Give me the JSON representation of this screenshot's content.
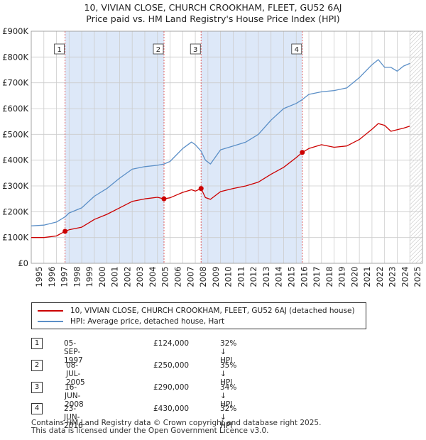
{
  "title_line1": "10, VIVIAN CLOSE, CHURCH CROOKHAM, FLEET, GU52 6AJ",
  "title_line2": "Price paid vs. HM Land Registry's House Price Index (HPI)",
  "colors": {
    "price_paid": "#cc0000",
    "hpi": "#5b8fc7",
    "shade": "#dde8f8",
    "vline": "#e06060",
    "grid": "#cccccc"
  },
  "chart_data": {
    "type": "line",
    "x_range": [
      1995,
      2026
    ],
    "ylim": [
      0,
      900000
    ],
    "y_ticks": [
      {
        "value": 0,
        "label": "£0"
      },
      {
        "value": 100000,
        "label": "£100K"
      },
      {
        "value": 200000,
        "label": "£200K"
      },
      {
        "value": 300000,
        "label": "£300K"
      },
      {
        "value": 400000,
        "label": "£400K"
      },
      {
        "value": 500000,
        "label": "£500K"
      },
      {
        "value": 600000,
        "label": "£600K"
      },
      {
        "value": 700000,
        "label": "£700K"
      },
      {
        "value": 800000,
        "label": "£800K"
      },
      {
        "value": 900000,
        "label": "£900K"
      }
    ],
    "x_ticks": [
      "1995",
      "1996",
      "1997",
      "1998",
      "1999",
      "2000",
      "2001",
      "2002",
      "2003",
      "2004",
      "2005",
      "2006",
      "2007",
      "2008",
      "2009",
      "2010",
      "2011",
      "2012",
      "2013",
      "2014",
      "2015",
      "2016",
      "2017",
      "2018",
      "2019",
      "2020",
      "2021",
      "2022",
      "2023",
      "2024",
      "2025",
      "2026"
    ],
    "shaded_periods": [
      [
        1997.68,
        2005.52
      ],
      [
        2008.46,
        2016.48
      ]
    ],
    "forecast_start": 2025.0,
    "series": [
      {
        "name": "10, VIVIAN CLOSE, CHURCH CROOKHAM, FLEET, GU52 6AJ (detached house)",
        "x": [
          1995.0,
          1996.0,
          1997.0,
          1997.68,
          1998.0,
          1999.0,
          2000.0,
          2001.0,
          2002.0,
          2003.0,
          2004.0,
          2005.0,
          2005.52,
          2006.0,
          2007.0,
          2007.7,
          2008.0,
          2008.46,
          2008.8,
          2009.2,
          2010.0,
          2011.0,
          2012.0,
          2013.0,
          2014.0,
          2015.0,
          2016.0,
          2016.48,
          2017.0,
          2018.0,
          2019.0,
          2020.0,
          2021.0,
          2022.0,
          2022.5,
          2023.0,
          2023.5,
          2024.0,
          2024.5,
          2025.0
        ],
        "y": [
          100000,
          100000,
          106000,
          124000,
          130000,
          140000,
          170000,
          190000,
          215000,
          240000,
          250000,
          256000,
          250000,
          254000,
          275000,
          285000,
          280000,
          290000,
          255000,
          248000,
          278000,
          290000,
          300000,
          315000,
          345000,
          372000,
          410000,
          430000,
          445000,
          460000,
          450000,
          455000,
          480000,
          520000,
          542000,
          535000,
          512000,
          518000,
          524000,
          532000
        ]
      },
      {
        "name": "HPI: Average price, detached house, Hart",
        "x": [
          1995.0,
          1996.0,
          1997.0,
          1997.68,
          1998.0,
          1999.0,
          2000.0,
          2001.0,
          2002.0,
          2003.0,
          2004.0,
          2005.0,
          2005.52,
          2006.0,
          2007.0,
          2007.7,
          2008.0,
          2008.46,
          2008.8,
          2009.2,
          2010.0,
          2011.0,
          2012.0,
          2013.0,
          2014.0,
          2015.0,
          2016.0,
          2016.48,
          2017.0,
          2018.0,
          2019.0,
          2020.0,
          2021.0,
          2022.0,
          2022.5,
          2023.0,
          2023.5,
          2024.0,
          2024.5,
          2025.0
        ],
        "y": [
          145000,
          148000,
          160000,
          180000,
          195000,
          215000,
          260000,
          290000,
          330000,
          365000,
          375000,
          380000,
          385000,
          395000,
          445000,
          470000,
          460000,
          435000,
          400000,
          385000,
          440000,
          455000,
          470000,
          500000,
          555000,
          600000,
          620000,
          635000,
          655000,
          665000,
          670000,
          680000,
          720000,
          770000,
          790000,
          760000,
          760000,
          745000,
          765000,
          775000
        ]
      }
    ],
    "transactions": [
      {
        "num": "1",
        "x": 1997.68,
        "price": 124000,
        "date": "05-SEP-1997",
        "price_label": "£124,000",
        "hpi_label": "32% ↓ HPI"
      },
      {
        "num": "2",
        "x": 2005.52,
        "price": 250000,
        "date": "08-JUL-2005",
        "price_label": "£250,000",
        "hpi_label": "35% ↓ HPI"
      },
      {
        "num": "3",
        "x": 2008.46,
        "price": 290000,
        "date": "16-JUN-2008",
        "price_label": "£290,000",
        "hpi_label": "34% ↓ HPI"
      },
      {
        "num": "4",
        "x": 2016.48,
        "price": 430000,
        "date": "23-JUN-2016",
        "price_label": "£430,000",
        "hpi_label": "32% ↓ HPI"
      }
    ]
  },
  "legend": {
    "price_paid_label": "10, VIVIAN CLOSE, CHURCH CROOKHAM, FLEET, GU52 6AJ (detached house)",
    "hpi_label": "HPI: Average price, detached house, Hart"
  },
  "footer": {
    "line1": "Contains HM Land Registry data © Crown copyright and database right 2025.",
    "line2": "This data is licensed under the Open Government Licence v3.0."
  }
}
